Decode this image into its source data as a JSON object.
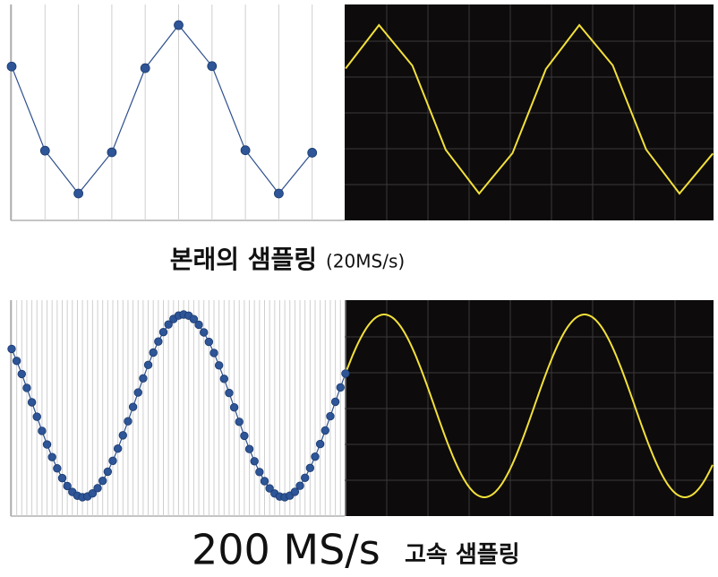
{
  "panels": [
    {
      "caption": {
        "title": "본래의 샘플링",
        "note": "(20MS/s)"
      }
    },
    {
      "caption": {
        "title": "200 MS/s",
        "note": "고속 샘플링"
      }
    }
  ]
}
